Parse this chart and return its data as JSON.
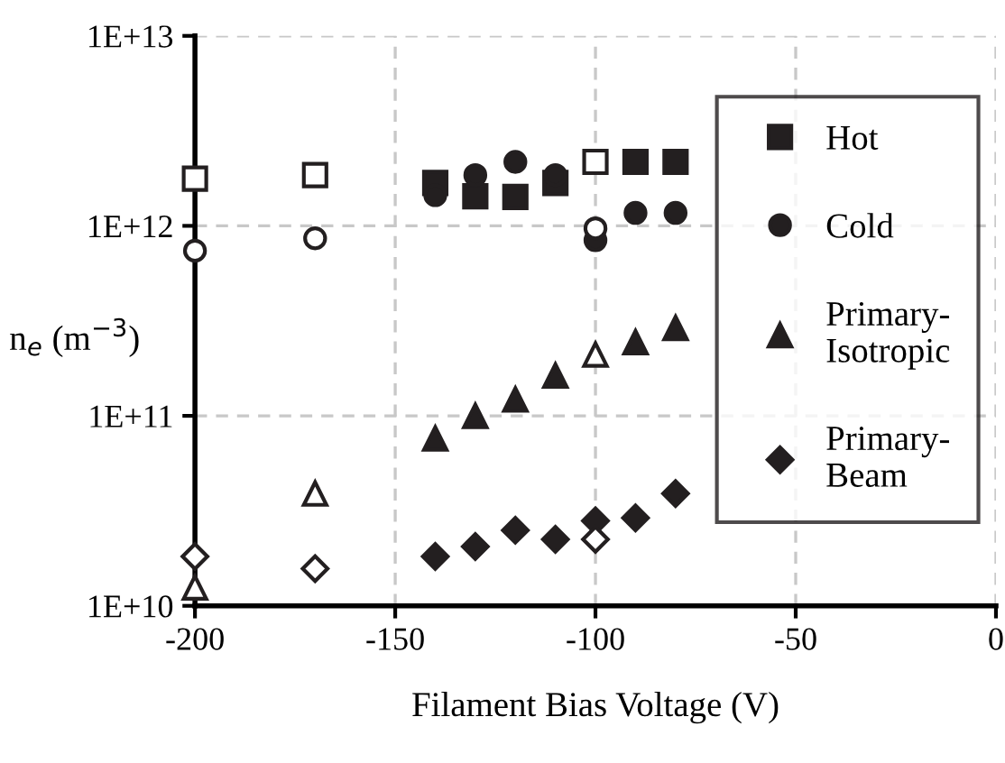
{
  "chart_data": {
    "type": "scatter",
    "xlabel": "Filament Bias Voltage (V)",
    "ylabel": "n$_{e}$ (m$^{−3}$)",
    "log": "y",
    "grid": true,
    "legend": "right",
    "xlim": [
      -200,
      0
    ],
    "xticks": [
      -200,
      -150,
      -100,
      -50,
      0
    ],
    "ylim": [
      10000000000.0,
      10000000000000.0
    ],
    "yticks": [
      {
        "value": 10000000000.0,
        "label": "1E+10"
      },
      {
        "value": 100000000000.0,
        "label": "1E+11"
      },
      {
        "value": 1000000000000.0,
        "label": "1E+12"
      },
      {
        "value": 10000000000000.0,
        "label": "1E+13"
      }
    ],
    "series": [
      {
        "name": "Hot",
        "marker": "square",
        "color": "#231f20",
        "x": [
          -140,
          -130,
          -120,
          -110,
          -100,
          -90,
          -80
        ],
        "values": [
          1680000000000.0,
          1430000000000.0,
          1420000000000.0,
          1680000000000.0,
          null,
          2170000000000.0,
          2170000000000.0
        ]
      },
      {
        "name": "Cold",
        "marker": "circle",
        "color": "#231f20",
        "x": [
          -140,
          -130,
          -120,
          -110,
          -100,
          -90,
          -80
        ],
        "values": [
          1450000000000.0,
          1850000000000.0,
          2170000000000.0,
          1850000000000.0,
          840000000000.0,
          1170000000000.0,
          1170000000000.0
        ]
      },
      {
        "name": "Primary-Isotropic",
        "marker": "triangle",
        "color": "#231f20",
        "x": [
          -140,
          -130,
          -120,
          -110,
          -90,
          -80
        ],
        "values": [
          76000000000.0,
          100000000000.0,
          122000000000.0,
          163000000000.0,
          244000000000.0,
          290000000000.0
        ]
      },
      {
        "name": "Primary-Beam",
        "marker": "diamond",
        "color": "#231f20",
        "x": [
          -140,
          -130,
          -120,
          -110,
          -100,
          -90,
          -80
        ],
        "values": [
          18200000000.0,
          20500000000.0,
          25000000000.0,
          22400000000.0,
          28000000000.0,
          29000000000.0,
          39000000000.0
        ]
      },
      {
        "marker": "square",
        "color": "#ffffff",
        "x": [
          -200,
          -170,
          -100
        ],
        "values": [
          1770000000000.0,
          1850000000000.0,
          2170000000000.0
        ]
      },
      {
        "marker": "circle",
        "color": "#ffffff",
        "x": [
          -200,
          -170,
          -100
        ],
        "values": [
          740000000000.0,
          860000000000.0,
          970000000000.0
        ]
      },
      {
        "marker": "triangle",
        "color": "#ffffff",
        "x": [
          -200,
          -170,
          -100
        ],
        "values": [
          12500000000.0,
          39000000000.0,
          210000000000.0
        ]
      },
      {
        "marker": "diamond",
        "color": "#ffffff",
        "x": [
          -200,
          -170,
          -100
        ],
        "values": [
          18200000000.0,
          15700000000.0,
          22400000000.0
        ]
      }
    ]
  }
}
